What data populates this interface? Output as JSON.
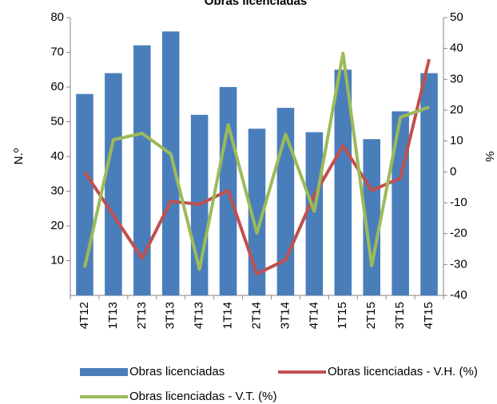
{
  "chart_data": {
    "type": "bar",
    "title": "Obras licenciadas",
    "y_label": "N.º",
    "y2_label": "%",
    "categories": [
      "4T12",
      "1T13",
      "2T13",
      "3T13",
      "4T13",
      "1T14",
      "2T14",
      "3T14",
      "4T14",
      "1T15",
      "2T15",
      "3T15",
      "4T15"
    ],
    "series": [
      {
        "name": "Obras licenciadas",
        "type": "bar",
        "color": "#4a7ebb",
        "values": [
          58,
          64,
          72,
          76,
          52,
          60,
          48,
          54,
          47,
          65,
          45,
          53,
          64
        ]
      },
      {
        "name": "Obras licenciadas - V.H. (%)",
        "type": "line",
        "axis": "y2",
        "color": "#c0504d",
        "values": [
          0,
          -14,
          -28,
          -9.5,
          -10.5,
          -6,
          -33,
          -28.5,
          -7.5,
          8.5,
          -6,
          -2,
          36.5
        ]
      },
      {
        "name": "Obras licenciadas - V.T. (%)",
        "type": "line",
        "axis": "y2",
        "color": "#9bbb59",
        "values": [
          -31,
          10.4,
          12.5,
          5.8,
          -31.5,
          15.3,
          -19.8,
          12.2,
          -12.8,
          38.4,
          -30.4,
          17.7,
          21
        ]
      }
    ],
    "ylim": [
      0,
      80
    ],
    "yticks": [
      10,
      20,
      30,
      40,
      50,
      60,
      70,
      80
    ],
    "y2lim": [
      -40,
      50
    ],
    "y2ticks": [
      -40,
      -30,
      -20,
      -10,
      0,
      10,
      20,
      30,
      40,
      50
    ],
    "grid": false
  }
}
